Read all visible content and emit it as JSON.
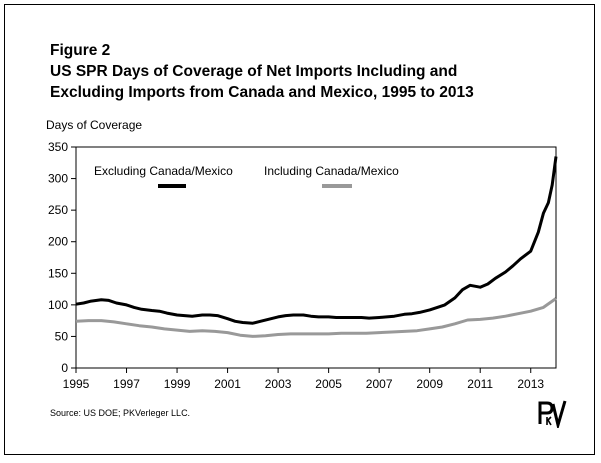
{
  "figure": {
    "number": "Figure 2",
    "title_line1": "US SPR Days of Coverage of Net Imports Including and",
    "title_line2": "Excluding Imports from Canada and Mexico, 1995 to 2013",
    "source": "Source: US DOE; PKVerleger LLC."
  },
  "logo": {
    "icon": "pkverleger-logo-icon"
  },
  "chart_data": {
    "type": "line",
    "ylabel": "Days of Coverage",
    "xlabel": "",
    "xlim": [
      1995,
      2014
    ],
    "ylim": [
      0,
      350
    ],
    "yticks": [
      0,
      50,
      100,
      150,
      200,
      250,
      300,
      350
    ],
    "xticks": [
      1995,
      1997,
      1999,
      2001,
      2003,
      2005,
      2007,
      2009,
      2011,
      2013
    ],
    "grid": false,
    "legend": "top-left, horizontal",
    "series": [
      {
        "name": "Excluding Canada/Mexico",
        "color": "#000000",
        "x": [
          1995.0,
          1995.3,
          1995.6,
          1996.0,
          1996.3,
          1996.6,
          1997.0,
          1997.3,
          1997.6,
          1998.0,
          1998.3,
          1998.6,
          1999.0,
          1999.3,
          1999.6,
          2000.0,
          2000.3,
          2000.6,
          2001.0,
          2001.3,
          2001.6,
          2002.0,
          2002.3,
          2002.6,
          2003.0,
          2003.3,
          2003.6,
          2004.0,
          2004.3,
          2004.6,
          2005.0,
          2005.3,
          2005.6,
          2006.0,
          2006.3,
          2006.6,
          2007.0,
          2007.3,
          2007.6,
          2008.0,
          2008.3,
          2008.6,
          2009.0,
          2009.3,
          2009.6,
          2010.0,
          2010.3,
          2010.6,
          2011.0,
          2011.3,
          2011.6,
          2012.0,
          2012.3,
          2012.6,
          2013.0,
          2013.3,
          2013.5,
          2013.7,
          2013.85,
          2014.0
        ],
        "values": [
          101,
          103,
          106,
          108,
          107,
          103,
          100,
          96,
          93,
          91,
          90,
          87,
          84,
          83,
          82,
          84,
          84,
          83,
          78,
          74,
          72,
          71,
          74,
          77,
          81,
          83,
          84,
          84,
          82,
          81,
          81,
          80,
          80,
          80,
          80,
          79,
          80,
          81,
          82,
          85,
          86,
          88,
          92,
          96,
          100,
          111,
          124,
          131,
          128,
          133,
          142,
          152,
          162,
          173,
          185,
          215,
          245,
          262,
          290,
          335
        ]
      },
      {
        "name": "Including Canada/Mexico",
        "color": "#999999",
        "x": [
          1995.0,
          1995.5,
          1996.0,
          1996.5,
          1997.0,
          1997.5,
          1998.0,
          1998.5,
          1999.0,
          1999.5,
          2000.0,
          2000.5,
          2001.0,
          2001.5,
          2002.0,
          2002.5,
          2003.0,
          2003.5,
          2004.0,
          2004.5,
          2005.0,
          2005.5,
          2006.0,
          2006.5,
          2007.0,
          2007.5,
          2008.0,
          2008.5,
          2009.0,
          2009.5,
          2010.0,
          2010.5,
          2011.0,
          2011.5,
          2012.0,
          2012.5,
          2013.0,
          2013.5,
          2014.0
        ],
        "values": [
          74,
          75,
          75,
          73,
          70,
          67,
          65,
          62,
          60,
          58,
          59,
          58,
          56,
          52,
          50,
          51,
          53,
          54,
          54,
          54,
          54,
          55,
          55,
          55,
          56,
          57,
          58,
          59,
          62,
          65,
          70,
          76,
          77,
          79,
          82,
          86,
          90,
          96,
          110
        ]
      }
    ]
  }
}
